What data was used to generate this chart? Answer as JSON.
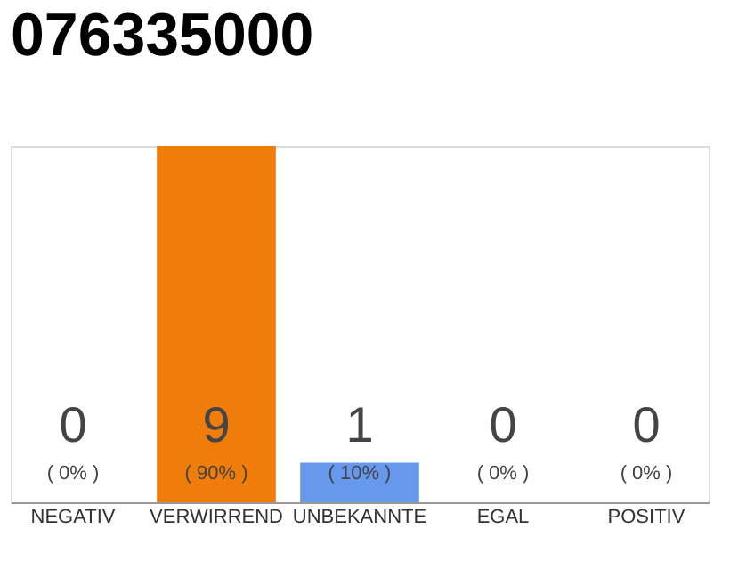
{
  "chart_data": {
    "type": "bar",
    "title": "076335000",
    "categories": [
      "NEGATIV",
      "VERWIRREND",
      "UNBEKANNTE",
      "EGAL",
      "POSITIV"
    ],
    "values": [
      0,
      9,
      1,
      0,
      0
    ],
    "colors": [
      "#cccccc",
      "#f07d0a",
      "#6699ee",
      "#cccccc",
      "#cccccc"
    ],
    "data_labels": true,
    "annotations": [
      "( 0% )",
      "( 90% )",
      "( 10% )",
      "( 0% )",
      "( 0% )"
    ],
    "tick_labels": "x"
  }
}
